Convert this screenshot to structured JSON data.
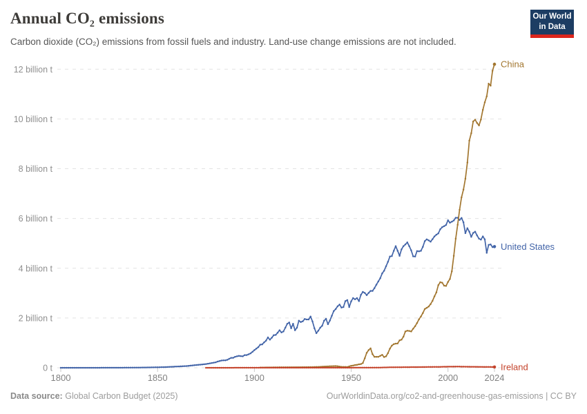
{
  "header": {
    "title": "Annual CO₂ emissions",
    "subtitle": "Carbon dioxide (CO₂) emissions from fossil fuels and industry. Land-use change emissions are not included.",
    "logo_line1": "Our World",
    "logo_line2": "in Data",
    "logo_bg_color": "#1d3d63",
    "logo_stripe_color": "#dc261d"
  },
  "footer": {
    "source_label": "Data source:",
    "source_value": "Global Carbon Budget (2025)",
    "link": "OurWorldinData.org/co2-and-greenhouse-gas-emissions | CC BY"
  },
  "chart_data": {
    "type": "line",
    "title": "Annual CO₂ emissions",
    "xlabel": "",
    "ylabel": "",
    "unit": "billion tonnes of CO₂",
    "xlim": [
      1800,
      2024
    ],
    "ylim": [
      0,
      12.5
    ],
    "grid": "dashed-horizontal",
    "legend_position": "line-end-labels",
    "x_ticks": [
      1800,
      1850,
      1900,
      1950,
      2000,
      2024
    ],
    "y_ticks": [
      {
        "value": 0,
        "label": "0 t"
      },
      {
        "value": 2,
        "label": "2 billion t"
      },
      {
        "value": 4,
        "label": "4 billion t"
      },
      {
        "value": 6,
        "label": "6 billion t"
      },
      {
        "value": 8,
        "label": "8 billion t"
      },
      {
        "value": 10,
        "label": "10 billion t"
      },
      {
        "value": 12,
        "label": "12 billion t"
      }
    ],
    "series": [
      {
        "name": "United States",
        "color": "#4264a8",
        "points": [
          [
            1800,
            0.0003
          ],
          [
            1805,
            0.0004
          ],
          [
            1810,
            0.0006
          ],
          [
            1815,
            0.0009
          ],
          [
            1820,
            0.0013
          ],
          [
            1825,
            0.002
          ],
          [
            1830,
            0.003
          ],
          [
            1835,
            0.005
          ],
          [
            1840,
            0.008
          ],
          [
            1845,
            0.013
          ],
          [
            1850,
            0.02
          ],
          [
            1855,
            0.03
          ],
          [
            1860,
            0.05
          ],
          [
            1865,
            0.07
          ],
          [
            1870,
            0.11
          ],
          [
            1875,
            0.15
          ],
          [
            1880,
            0.22
          ],
          [
            1881,
            0.25
          ],
          [
            1882,
            0.27
          ],
          [
            1883,
            0.29
          ],
          [
            1884,
            0.3
          ],
          [
            1885,
            0.3
          ],
          [
            1886,
            0.32
          ],
          [
            1887,
            0.36
          ],
          [
            1888,
            0.4
          ],
          [
            1889,
            0.4
          ],
          [
            1890,
            0.44
          ],
          [
            1891,
            0.46
          ],
          [
            1892,
            0.48
          ],
          [
            1893,
            0.47
          ],
          [
            1894,
            0.46
          ],
          [
            1895,
            0.51
          ],
          [
            1896,
            0.51
          ],
          [
            1897,
            0.54
          ],
          [
            1898,
            0.58
          ],
          [
            1899,
            0.64
          ],
          [
            1900,
            0.71
          ],
          [
            1901,
            0.77
          ],
          [
            1902,
            0.83
          ],
          [
            1903,
            0.93
          ],
          [
            1904,
            0.94
          ],
          [
            1905,
            1.02
          ],
          [
            1906,
            1.09
          ],
          [
            1907,
            1.22
          ],
          [
            1908,
            1.13
          ],
          [
            1909,
            1.21
          ],
          [
            1910,
            1.31
          ],
          [
            1911,
            1.32
          ],
          [
            1912,
            1.41
          ],
          [
            1913,
            1.51
          ],
          [
            1914,
            1.42
          ],
          [
            1915,
            1.46
          ],
          [
            1916,
            1.61
          ],
          [
            1917,
            1.77
          ],
          [
            1918,
            1.82
          ],
          [
            1919,
            1.59
          ],
          [
            1920,
            1.77
          ],
          [
            1921,
            1.51
          ],
          [
            1922,
            1.61
          ],
          [
            1923,
            1.89
          ],
          [
            1924,
            1.84
          ],
          [
            1925,
            1.87
          ],
          [
            1926,
            1.96
          ],
          [
            1927,
            1.94
          ],
          [
            1928,
            1.94
          ],
          [
            1929,
            2.06
          ],
          [
            1930,
            1.86
          ],
          [
            1931,
            1.59
          ],
          [
            1932,
            1.39
          ],
          [
            1933,
            1.49
          ],
          [
            1934,
            1.61
          ],
          [
            1935,
            1.69
          ],
          [
            1936,
            1.89
          ],
          [
            1937,
            1.97
          ],
          [
            1938,
            1.75
          ],
          [
            1939,
            1.9
          ],
          [
            1940,
            2.09
          ],
          [
            1941,
            2.28
          ],
          [
            1942,
            2.36
          ],
          [
            1943,
            2.47
          ],
          [
            1944,
            2.54
          ],
          [
            1945,
            2.42
          ],
          [
            1946,
            2.44
          ],
          [
            1947,
            2.68
          ],
          [
            1948,
            2.72
          ],
          [
            1949,
            2.44
          ],
          [
            1950,
            2.67
          ],
          [
            1951,
            2.8
          ],
          [
            1952,
            2.75
          ],
          [
            1953,
            2.8
          ],
          [
            1954,
            2.68
          ],
          [
            1955,
            2.93
          ],
          [
            1956,
            3.05
          ],
          [
            1957,
            3.01
          ],
          [
            1958,
            2.92
          ],
          [
            1959,
            3.01
          ],
          [
            1960,
            3.09
          ],
          [
            1961,
            3.09
          ],
          [
            1962,
            3.2
          ],
          [
            1963,
            3.34
          ],
          [
            1964,
            3.47
          ],
          [
            1965,
            3.6
          ],
          [
            1966,
            3.79
          ],
          [
            1967,
            3.9
          ],
          [
            1968,
            4.08
          ],
          [
            1969,
            4.26
          ],
          [
            1970,
            4.47
          ],
          [
            1971,
            4.49
          ],
          [
            1972,
            4.7
          ],
          [
            1973,
            4.89
          ],
          [
            1974,
            4.7
          ],
          [
            1975,
            4.5
          ],
          [
            1976,
            4.76
          ],
          [
            1977,
            4.89
          ],
          [
            1978,
            4.96
          ],
          [
            1979,
            5.04
          ],
          [
            1980,
            4.89
          ],
          [
            1981,
            4.72
          ],
          [
            1982,
            4.48
          ],
          [
            1983,
            4.47
          ],
          [
            1984,
            4.69
          ],
          [
            1985,
            4.68
          ],
          [
            1986,
            4.7
          ],
          [
            1987,
            4.86
          ],
          [
            1988,
            5.09
          ],
          [
            1989,
            5.16
          ],
          [
            1990,
            5.12
          ],
          [
            1991,
            5.07
          ],
          [
            1992,
            5.17
          ],
          [
            1993,
            5.28
          ],
          [
            1994,
            5.35
          ],
          [
            1995,
            5.4
          ],
          [
            1996,
            5.57
          ],
          [
            1997,
            5.65
          ],
          [
            1998,
            5.69
          ],
          [
            1999,
            5.74
          ],
          [
            2000,
            5.93
          ],
          [
            2001,
            5.83
          ],
          [
            2002,
            5.87
          ],
          [
            2003,
            5.92
          ],
          [
            2004,
            6.03
          ],
          [
            2005,
            6.03
          ],
          [
            2006,
            5.94
          ],
          [
            2007,
            6.02
          ],
          [
            2008,
            5.85
          ],
          [
            2009,
            5.41
          ],
          [
            2010,
            5.61
          ],
          [
            2011,
            5.47
          ],
          [
            2012,
            5.26
          ],
          [
            2013,
            5.42
          ],
          [
            2014,
            5.47
          ],
          [
            2015,
            5.32
          ],
          [
            2016,
            5.19
          ],
          [
            2017,
            5.15
          ],
          [
            2018,
            5.28
          ],
          [
            2019,
            5.16
          ],
          [
            2020,
            4.62
          ],
          [
            2021,
            4.94
          ],
          [
            2022,
            4.96
          ],
          [
            2023,
            4.85
          ],
          [
            2024,
            4.87
          ]
        ]
      },
      {
        "name": "China",
        "color": "#a2762f",
        "points": [
          [
            1903,
            0.01
          ],
          [
            1910,
            0.016
          ],
          [
            1915,
            0.02
          ],
          [
            1920,
            0.021
          ],
          [
            1925,
            0.024
          ],
          [
            1930,
            0.028
          ],
          [
            1933,
            0.035
          ],
          [
            1936,
            0.05
          ],
          [
            1939,
            0.06
          ],
          [
            1942,
            0.07
          ],
          [
            1945,
            0.04
          ],
          [
            1948,
            0.03
          ],
          [
            1950,
            0.08
          ],
          [
            1951,
            0.09
          ],
          [
            1952,
            0.11
          ],
          [
            1953,
            0.12
          ],
          [
            1954,
            0.14
          ],
          [
            1955,
            0.15
          ],
          [
            1956,
            0.19
          ],
          [
            1957,
            0.38
          ],
          [
            1958,
            0.6
          ],
          [
            1959,
            0.71
          ],
          [
            1960,
            0.78
          ],
          [
            1961,
            0.55
          ],
          [
            1962,
            0.44
          ],
          [
            1963,
            0.44
          ],
          [
            1964,
            0.44
          ],
          [
            1965,
            0.48
          ],
          [
            1966,
            0.52
          ],
          [
            1967,
            0.43
          ],
          [
            1968,
            0.46
          ],
          [
            1969,
            0.59
          ],
          [
            1970,
            0.77
          ],
          [
            1971,
            0.89
          ],
          [
            1972,
            0.95
          ],
          [
            1973,
            0.97
          ],
          [
            1974,
            0.98
          ],
          [
            1975,
            1.1
          ],
          [
            1976,
            1.13
          ],
          [
            1977,
            1.25
          ],
          [
            1978,
            1.46
          ],
          [
            1979,
            1.49
          ],
          [
            1980,
            1.48
          ],
          [
            1981,
            1.46
          ],
          [
            1982,
            1.57
          ],
          [
            1983,
            1.67
          ],
          [
            1984,
            1.8
          ],
          [
            1985,
            1.95
          ],
          [
            1986,
            2.06
          ],
          [
            1987,
            2.2
          ],
          [
            1988,
            2.36
          ],
          [
            1989,
            2.41
          ],
          [
            1990,
            2.46
          ],
          [
            1991,
            2.56
          ],
          [
            1992,
            2.69
          ],
          [
            1993,
            2.87
          ],
          [
            1994,
            3.03
          ],
          [
            1995,
            3.32
          ],
          [
            1996,
            3.44
          ],
          [
            1997,
            3.42
          ],
          [
            1998,
            3.3
          ],
          [
            1999,
            3.29
          ],
          [
            2000,
            3.45
          ],
          [
            2001,
            3.57
          ],
          [
            2002,
            3.88
          ],
          [
            2003,
            4.5
          ],
          [
            2004,
            5.19
          ],
          [
            2005,
            5.75
          ],
          [
            2006,
            6.35
          ],
          [
            2007,
            6.85
          ],
          [
            2008,
            7.16
          ],
          [
            2009,
            7.6
          ],
          [
            2010,
            8.25
          ],
          [
            2011,
            9.13
          ],
          [
            2012,
            9.43
          ],
          [
            2013,
            9.9
          ],
          [
            2014,
            9.97
          ],
          [
            2015,
            9.84
          ],
          [
            2016,
            9.74
          ],
          [
            2017,
            9.98
          ],
          [
            2018,
            10.37
          ],
          [
            2019,
            10.67
          ],
          [
            2020,
            10.91
          ],
          [
            2021,
            11.42
          ],
          [
            2022,
            11.34
          ],
          [
            2023,
            11.94
          ],
          [
            2024,
            12.2
          ]
        ]
      },
      {
        "name": "Ireland",
        "color": "#c4432b",
        "points": [
          [
            1875,
            0.0008
          ],
          [
            1880,
            0.001
          ],
          [
            1885,
            0.0012
          ],
          [
            1890,
            0.0014
          ],
          [
            1895,
            0.0016
          ],
          [
            1900,
            0.0018
          ],
          [
            1905,
            0.002
          ],
          [
            1910,
            0.0022
          ],
          [
            1915,
            0.0024
          ],
          [
            1920,
            0.0023
          ],
          [
            1925,
            0.0024
          ],
          [
            1930,
            0.0027
          ],
          [
            1935,
            0.003
          ],
          [
            1940,
            0.0028
          ],
          [
            1945,
            0.0025
          ],
          [
            1950,
            0.004
          ],
          [
            1955,
            0.0045
          ],
          [
            1960,
            0.005
          ],
          [
            1965,
            0.008
          ],
          [
            1970,
            0.02
          ],
          [
            1975,
            0.022
          ],
          [
            1980,
            0.026
          ],
          [
            1985,
            0.028
          ],
          [
            1990,
            0.032
          ],
          [
            1995,
            0.035
          ],
          [
            2000,
            0.044
          ],
          [
            2005,
            0.047
          ],
          [
            2010,
            0.041
          ],
          [
            2015,
            0.038
          ],
          [
            2020,
            0.033
          ],
          [
            2024,
            0.031
          ]
        ]
      }
    ]
  }
}
